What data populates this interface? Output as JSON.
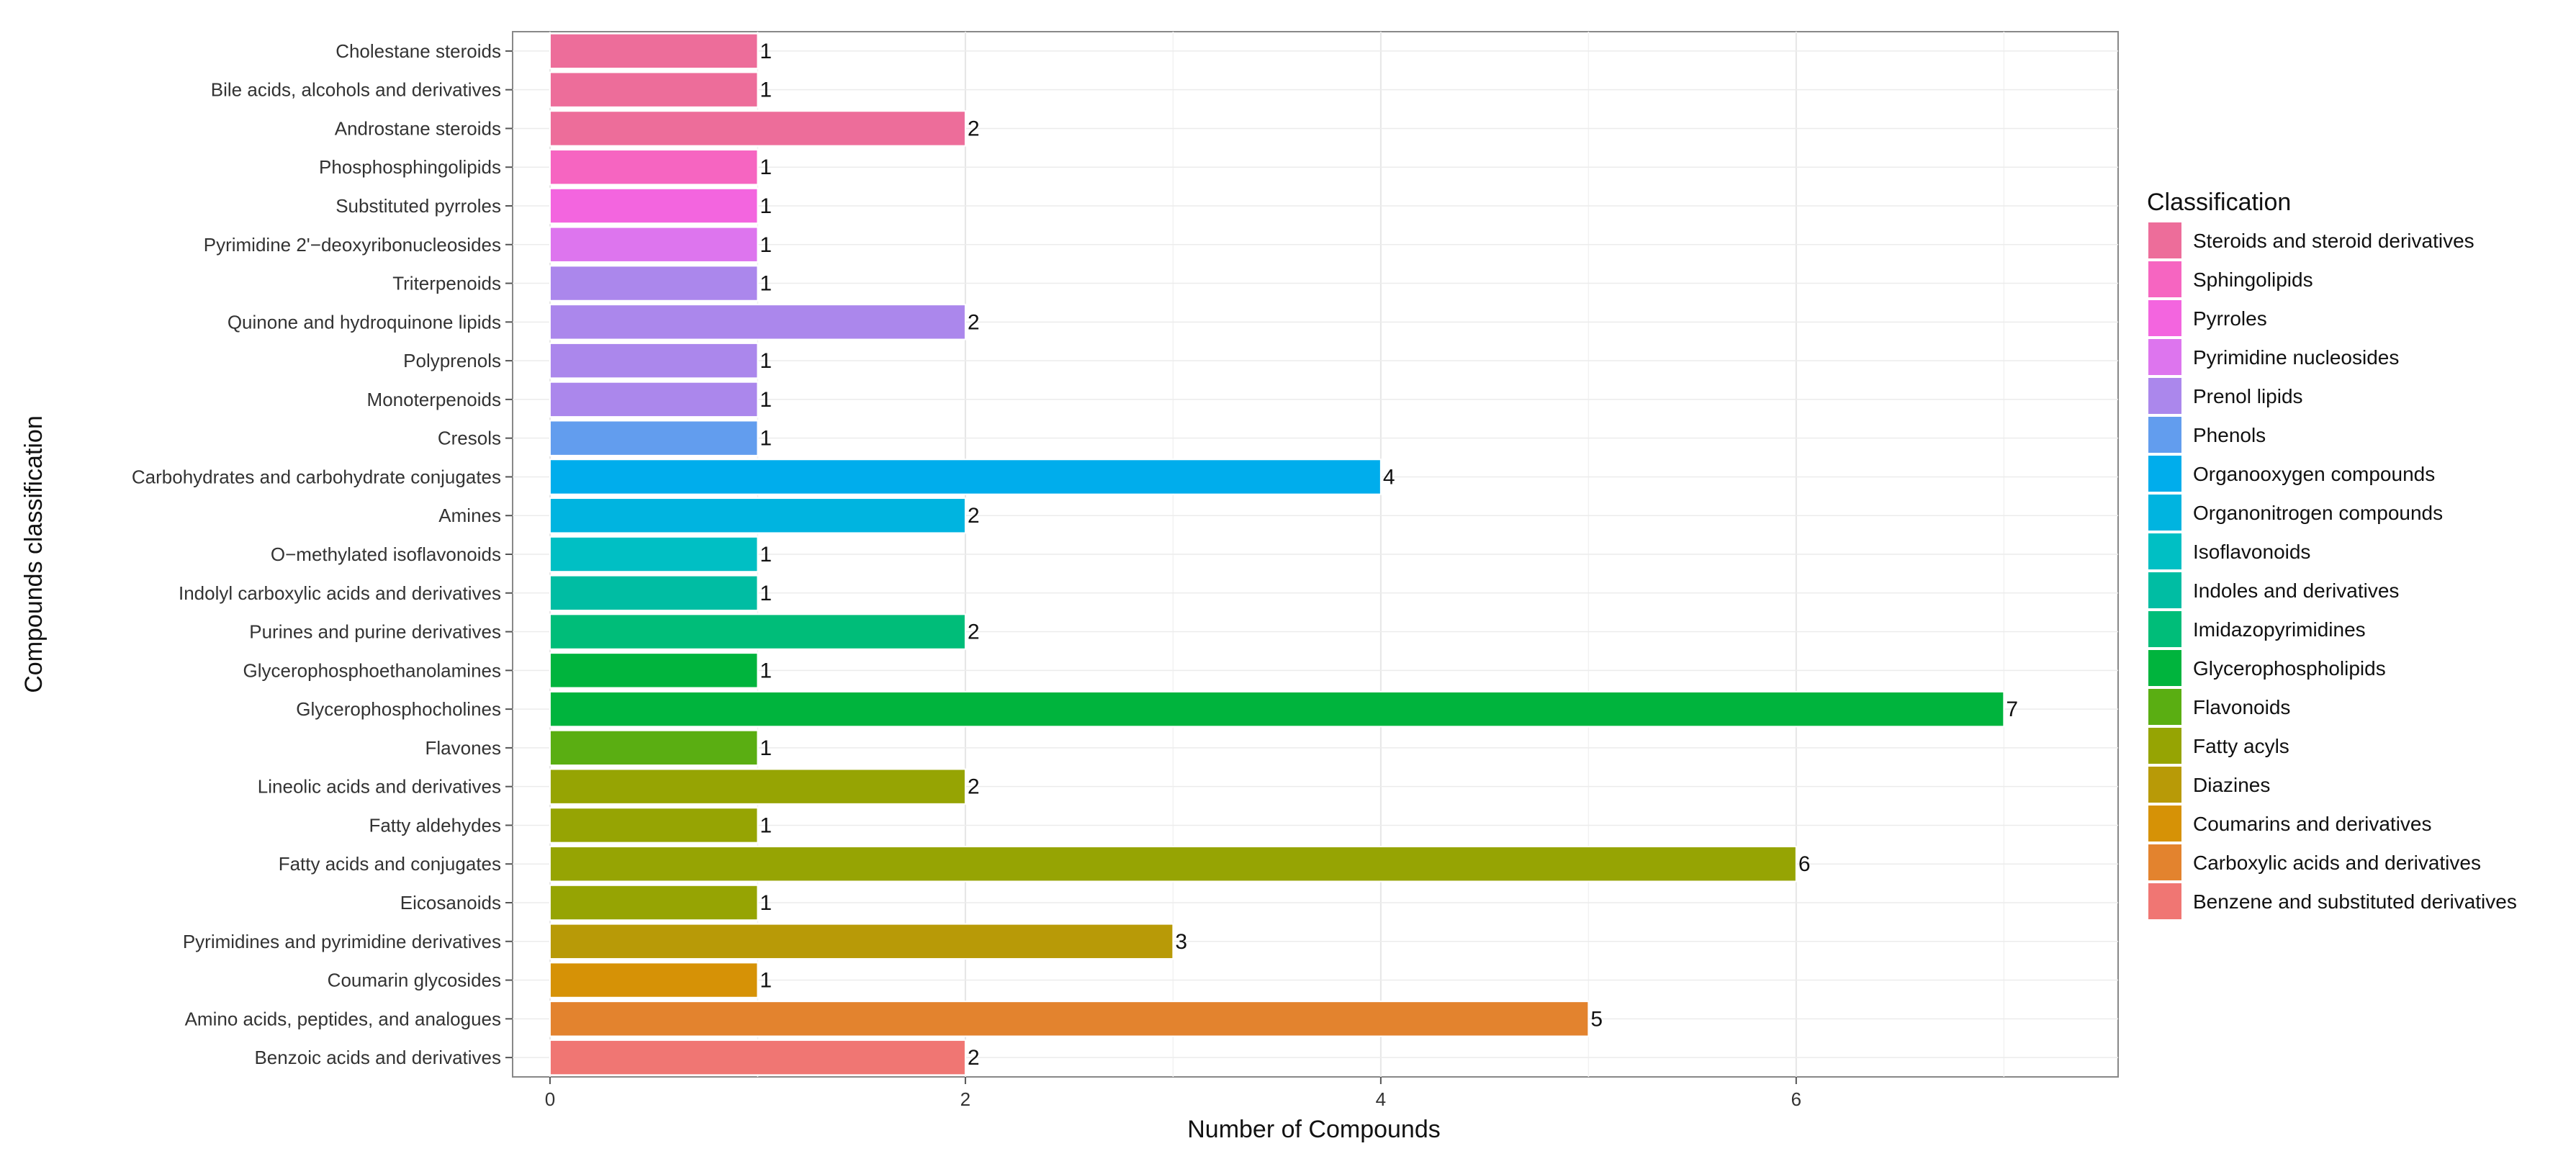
{
  "chart_data": {
    "type": "bar",
    "orientation": "horizontal",
    "xlabel": "Number of Compounds",
    "ylabel": "Compounds classification",
    "xlim": [
      -0.18,
      7.55
    ],
    "x_ticks": [
      0,
      2,
      4,
      6
    ],
    "grid": true,
    "legend_title": "Classification",
    "legend_position": "right",
    "categories": [
      "Cholestane steroids",
      "Bile acids, alcohols and derivatives",
      "Androstane steroids",
      "Phosphosphingolipids",
      "Substituted pyrroles",
      "Pyrimidine 2'−deoxyribonucleosides",
      "Triterpenoids",
      "Quinone and hydroquinone lipids",
      "Polyprenols",
      "Monoterpenoids",
      "Cresols",
      "Carbohydrates and carbohydrate conjugates",
      "Amines",
      "O−methylated isoflavonoids",
      "Indolyl carboxylic acids and derivatives",
      "Purines and purine derivatives",
      "Glycerophosphoethanolamines",
      "Glycerophosphocholines",
      "Flavones",
      "Lineolic acids and derivatives",
      "Fatty aldehydes",
      "Fatty acids and conjugates",
      "Eicosanoids",
      "Pyrimidines and pyrimidine derivatives",
      "Coumarin glycosides",
      "Amino acids, peptides, and analogues",
      "Benzoic acids and derivatives"
    ],
    "values": [
      1,
      1,
      2,
      1,
      1,
      1,
      1,
      2,
      1,
      1,
      1,
      4,
      2,
      1,
      1,
      2,
      1,
      7,
      1,
      2,
      1,
      6,
      1,
      3,
      1,
      5,
      2
    ],
    "bar_class": [
      "Steroids and steroid derivatives",
      "Steroids and steroid derivatives",
      "Steroids and steroid derivatives",
      "Sphingolipids",
      "Pyrroles",
      "Pyrimidine nucleosides",
      "Prenol lipids",
      "Prenol lipids",
      "Prenol lipids",
      "Prenol lipids",
      "Phenols",
      "Organooxygen compounds",
      "Organonitrogen compounds",
      "Isoflavonoids",
      "Indoles and derivatives",
      "Imidazopyrimidines",
      "Glycerophospholipids",
      "Glycerophospholipids",
      "Flavonoids",
      "Fatty acyls",
      "Fatty acyls",
      "Fatty acyls",
      "Fatty acyls",
      "Diazines",
      "Coumarins and derivatives",
      "Carboxylic acids and derivatives",
      "Benzene and substituted derivatives"
    ],
    "legend": [
      {
        "label": "Steroids and steroid derivatives",
        "color": "#ED6D9A"
      },
      {
        "label": "Sphingolipids",
        "color": "#F665C1"
      },
      {
        "label": "Pyrroles",
        "color": "#F365DF"
      },
      {
        "label": "Pyrimidine nucleosides",
        "color": "#DD75EE"
      },
      {
        "label": "Prenol lipids",
        "color": "#AB87EC"
      },
      {
        "label": "Phenols",
        "color": "#629DEE"
      },
      {
        "label": "Organooxygen compounds",
        "color": "#00ADEC"
      },
      {
        "label": "Organonitrogen compounds",
        "color": "#00B4E0"
      },
      {
        "label": "Isoflavonoids",
        "color": "#00BFC4"
      },
      {
        "label": "Indoles and derivatives",
        "color": "#00BDA3"
      },
      {
        "label": "Imidazopyrimidines",
        "color": "#00BD79"
      },
      {
        "label": "Glycerophospholipids",
        "color": "#00B43D"
      },
      {
        "label": "Flavonoids",
        "color": "#5AAE12"
      },
      {
        "label": "Fatty acyls",
        "color": "#96A403"
      },
      {
        "label": "Diazines",
        "color": "#B89A07"
      },
      {
        "label": "Coumarins and derivatives",
        "color": "#D69206"
      },
      {
        "label": "Carboxylic acids and derivatives",
        "color": "#E3832E"
      },
      {
        "label": "Benzene and substituted derivatives",
        "color": "#F07673"
      }
    ]
  }
}
